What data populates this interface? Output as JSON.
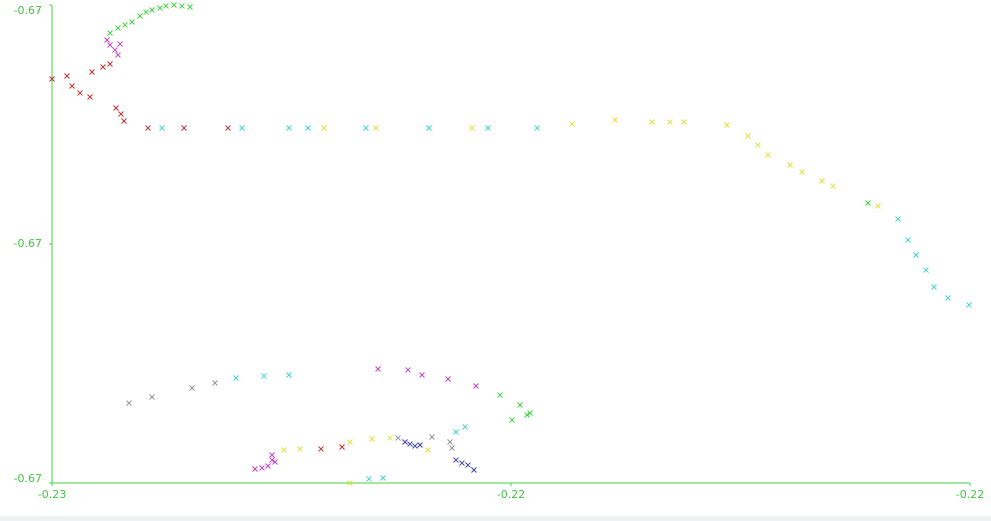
{
  "chart_data": {
    "type": "scatter",
    "xlim": [
      -0.23,
      -0.215
    ],
    "ylim": [
      -0.673,
      -0.669
    ],
    "xticks": [
      {
        "value": -0.23,
        "label": "-0.23"
      },
      {
        "value": -0.2225,
        "label": "-0.22"
      },
      {
        "value": -0.215,
        "label": "-0.22"
      }
    ],
    "yticks": [
      {
        "value": -0.673,
        "label": "-0.67"
      },
      {
        "value": -0.671,
        "label": "-0.67"
      },
      {
        "value": -0.669,
        "label": "-0.67"
      }
    ],
    "axis_color": "#44d044",
    "series": [
      {
        "color": "#c03030",
        "x": [
          -0.23,
          -0.229755,
          -0.229673,
          -0.229542,
          -0.229379,
          -0.229346,
          -0.229167,
          -0.229052,
          -0.228954,
          -0.228873,
          -0.228824,
          -0.228431,
          -0.227843,
          -0.227124,
          -0.225605,
          -0.225261
        ],
        "y": [
          -0.669619,
          -0.669594,
          -0.669678,
          -0.669736,
          -0.66977,
          -0.669561,
          -0.669519,
          -0.669494,
          -0.669862,
          -0.669912,
          -0.669971,
          -0.670029,
          -0.670029,
          -0.670029,
          -0.672715,
          -0.672699
        ]
      },
      {
        "color": "#40d040",
        "x": [
          -0.229052,
          -0.228922,
          -0.228807,
          -0.228693,
          -0.228562,
          -0.228464,
          -0.228366,
          -0.228235,
          -0.228137,
          -0.228007,
          -0.227876,
          -0.227745,
          -0.22268,
          -0.222353,
          -0.222238,
          -0.222189,
          -0.222484,
          -0.216667
        ],
        "y": [
          -0.669234,
          -0.669192,
          -0.669167,
          -0.669142,
          -0.669092,
          -0.669059,
          -0.669042,
          -0.669025,
          -0.669008,
          -0.669,
          -0.669008,
          -0.669017,
          -0.672264,
          -0.672347,
          -0.672431,
          -0.672414,
          -0.672473,
          -0.670657
        ]
      },
      {
        "color": "#c040c0",
        "x": [
          -0.229101,
          -0.229052,
          -0.228971,
          -0.228889,
          -0.228922,
          -0.224673,
          -0.224183,
          -0.223954,
          -0.223529,
          -0.223072,
          -0.226683,
          -0.226569,
          -0.226471,
          -0.226405,
          -0.226405,
          -0.226356
        ],
        "y": [
          -0.669293,
          -0.669335,
          -0.669377,
          -0.669326,
          -0.669418,
          -0.672046,
          -0.672054,
          -0.672096,
          -0.67213,
          -0.672188,
          -0.672883,
          -0.672874,
          -0.672858,
          -0.672808,
          -0.672766,
          -0.672824
        ]
      },
      {
        "color": "#40d0d0",
        "x": [
          -0.228203,
          -0.226896,
          -0.226128,
          -0.225817,
          -0.224869,
          -0.22384,
          -0.222876,
          -0.222075,
          -0.216176,
          -0.216013,
          -0.215882,
          -0.215719,
          -0.215588,
          -0.215359,
          -0.215016,
          -0.226993,
          -0.226536,
          -0.226128,
          -0.22482,
          -0.224591,
          -0.223251,
          -0.223399
        ],
        "y": [
          -0.670029,
          -0.670029,
          -0.670029,
          -0.670029,
          -0.670029,
          -0.670029,
          -0.670029,
          -0.670029,
          -0.670791,
          -0.670966,
          -0.671092,
          -0.671218,
          -0.67136,
          -0.671452,
          -0.67151,
          -0.672121,
          -0.672105,
          -0.672096,
          -0.672966,
          -0.672958,
          -0.672531,
          -0.672573
        ]
      },
      {
        "color": "#e0e040",
        "x": [
          -0.225556,
          -0.224706,
          -0.223137,
          -0.221503,
          -0.2208,
          -0.220196,
          -0.219902,
          -0.219673,
          -0.21897,
          -0.218627,
          -0.218464,
          -0.2183,
          -0.217941,
          -0.217745,
          -0.217418,
          -0.217238,
          -0.216503,
          -0.226209,
          -0.225948,
          -0.225131,
          -0.224771,
          -0.224477,
          -0.225131,
          -0.223856
        ],
        "y": [
          -0.670029,
          -0.670029,
          -0.670029,
          -0.669996,
          -0.669962,
          -0.669979,
          -0.669979,
          -0.669979,
          -0.670004,
          -0.670096,
          -0.670172,
          -0.670255,
          -0.670339,
          -0.670397,
          -0.670473,
          -0.670515,
          -0.670682,
          -0.672724,
          -0.672715,
          -0.672657,
          -0.672632,
          -0.672623,
          -0.673,
          -0.672724
        ]
      },
      {
        "color": "#909090",
        "x": [
          -0.228742,
          -0.228366,
          -0.227712,
          -0.227337,
          -0.224346,
          -0.223791,
          -0.223497,
          -0.223464
        ],
        "y": [
          -0.672331,
          -0.67228,
          -0.672205,
          -0.672163,
          -0.672623,
          -0.672615,
          -0.672657,
          -0.672707
        ]
      },
      {
        "color": "#4040a0",
        "x": [
          -0.224232,
          -0.22415,
          -0.224069,
          -0.223987,
          -0.223399,
          -0.223301,
          -0.223203,
          -0.223105
        ],
        "y": [
          -0.672657,
          -0.672674,
          -0.67269,
          -0.672682,
          -0.672808,
          -0.672833,
          -0.67285,
          -0.672891
        ]
      }
    ]
  }
}
